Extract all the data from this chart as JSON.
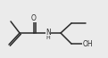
{
  "bg_color": "#ebebeb",
  "bond_color": "#2a2a2a",
  "text_color": "#2a2a2a",
  "atoms": {
    "O_label": "O",
    "N_label": "N",
    "H_label": "H",
    "OH_label": "OH"
  },
  "figsize": [
    1.21,
    0.65
  ],
  "dpi": 100,
  "lw": 1.1,
  "fsize": 5.5
}
